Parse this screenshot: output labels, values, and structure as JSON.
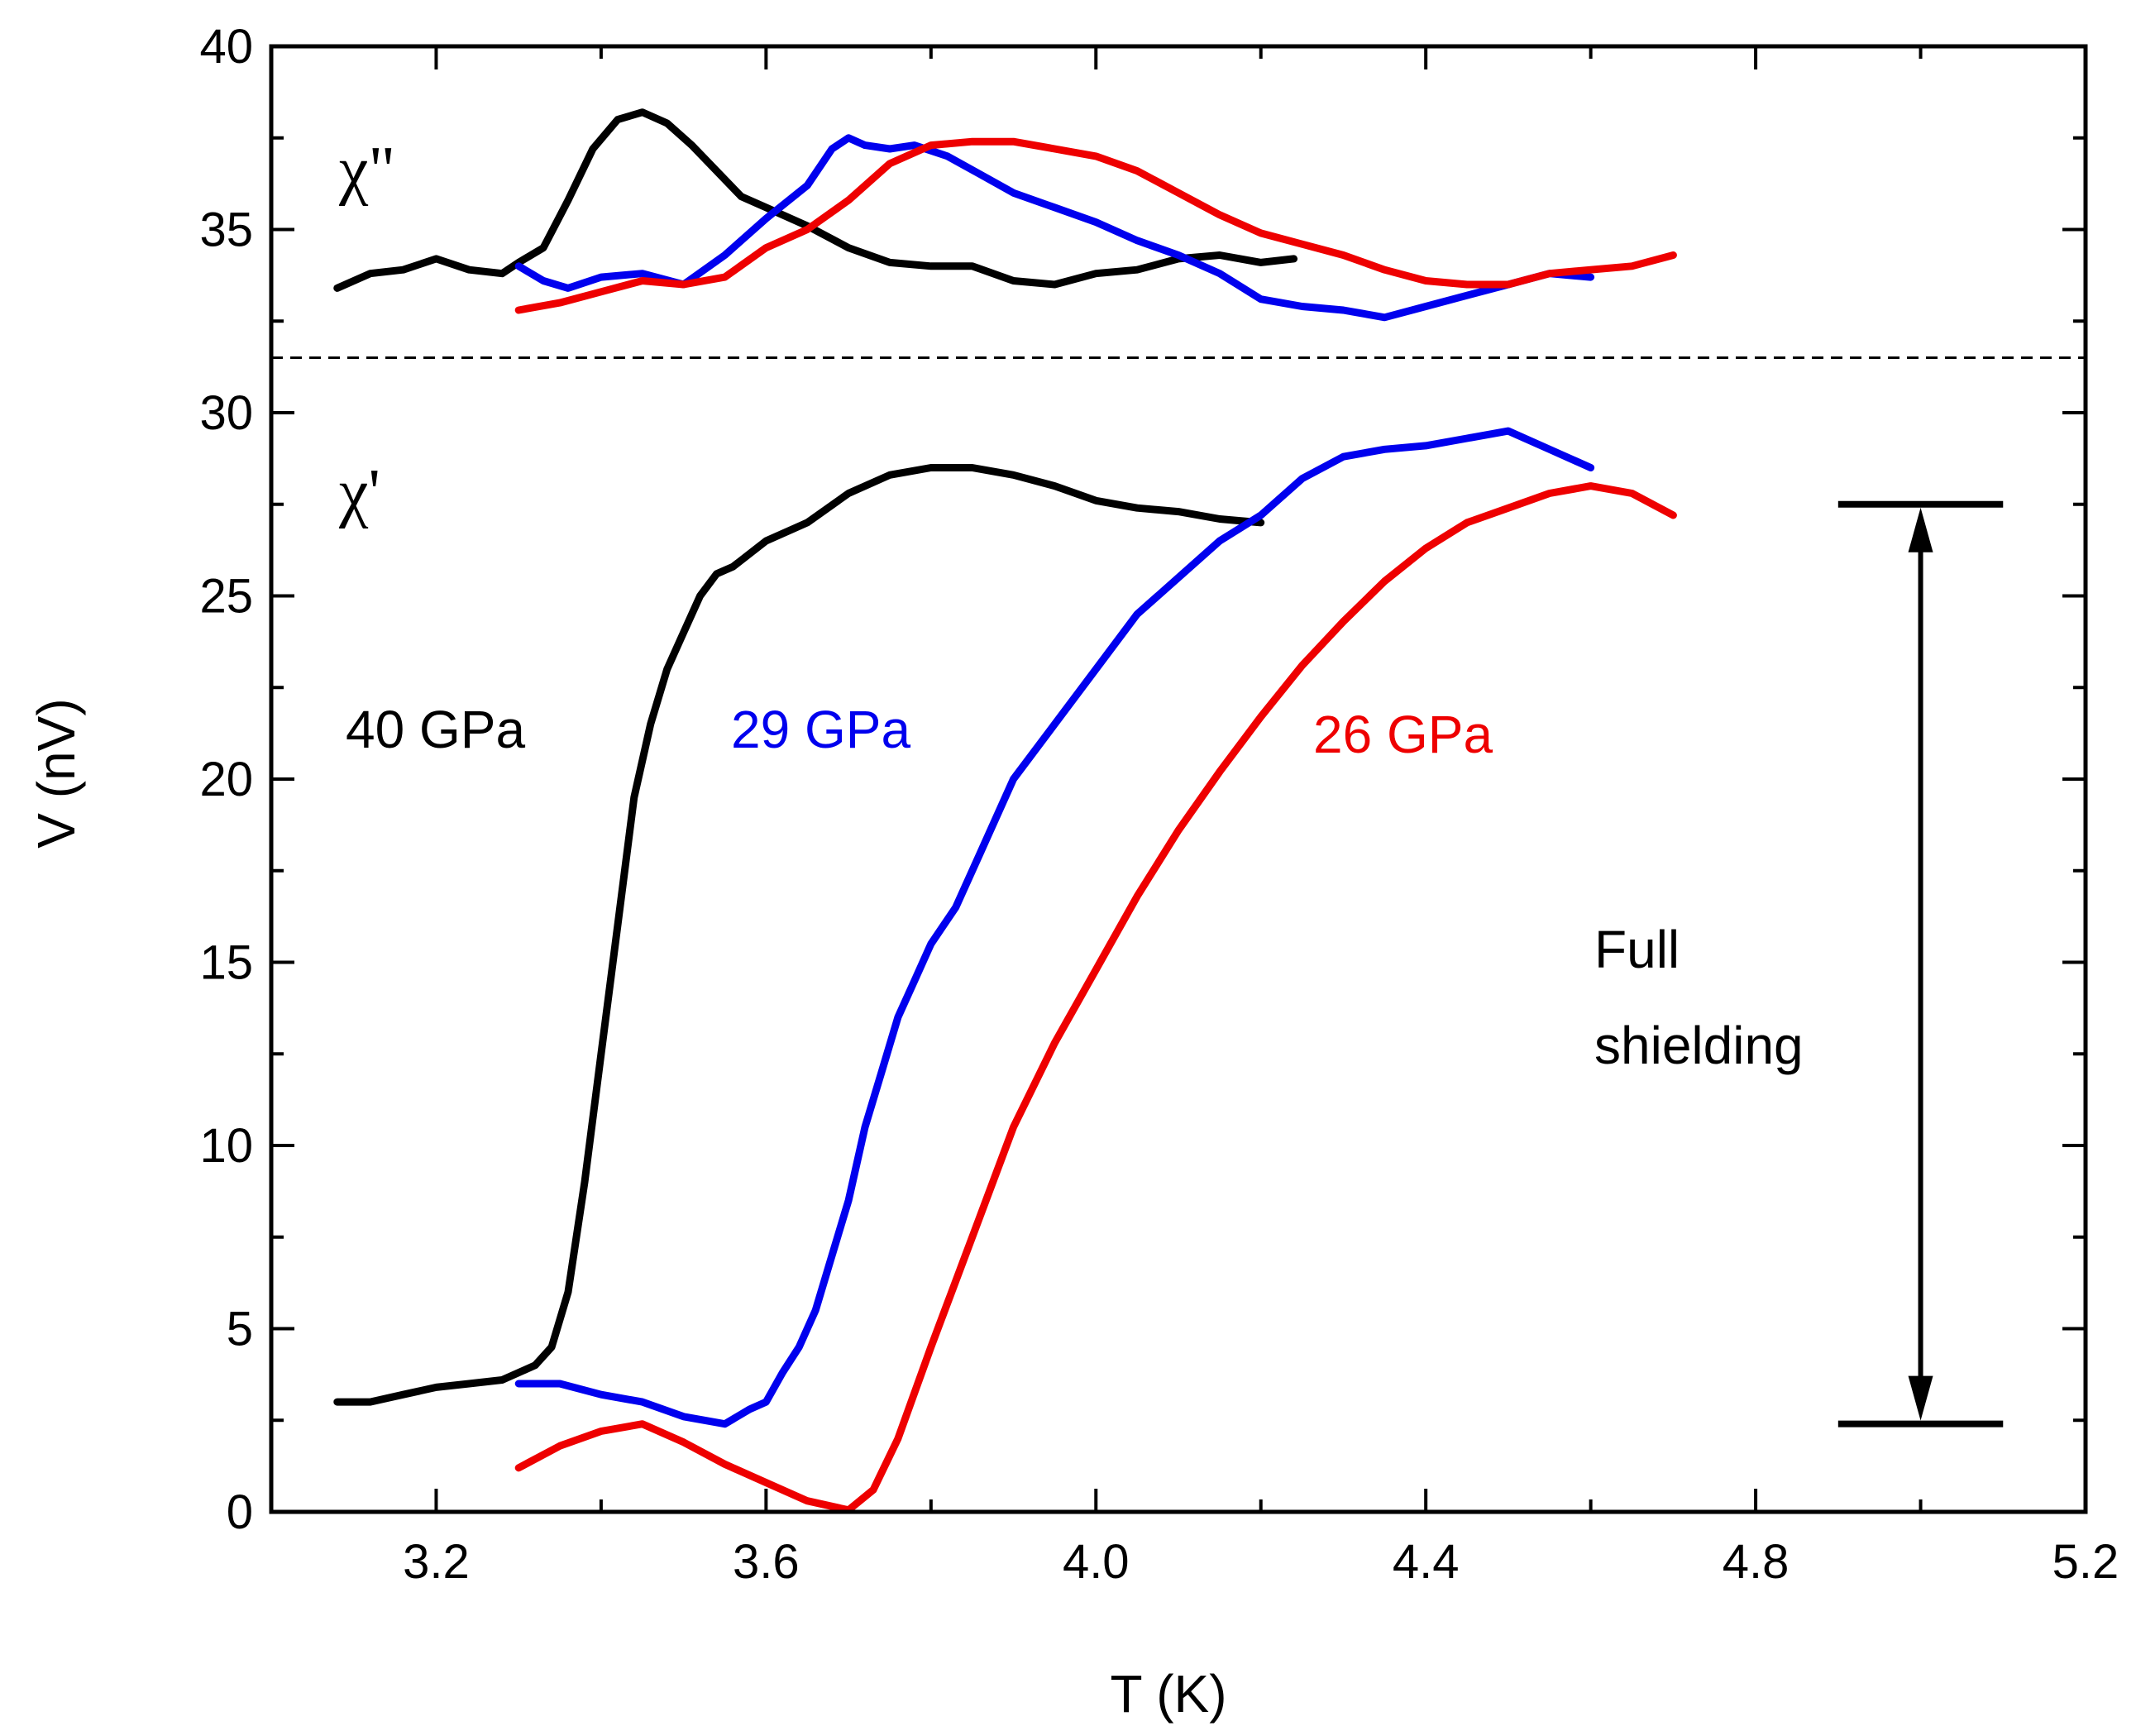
{
  "chart_data": {
    "type": "line",
    "title": "",
    "xlabel": "T (K)",
    "ylabel": "V (nV)",
    "xlim": [
      3.0,
      5.2
    ],
    "ylim": [
      0,
      40
    ],
    "x_ticks": [
      3.2,
      3.6,
      4.0,
      4.4,
      4.8,
      5.2
    ],
    "x_tick_labels": [
      "3.2",
      "3.6",
      "4.0",
      "4.4",
      "4.8",
      "5.2"
    ],
    "y_ticks": [
      0,
      5,
      10,
      15,
      20,
      25,
      30,
      35,
      40
    ],
    "y_tick_labels": [
      "0",
      "5",
      "10",
      "15",
      "20",
      "25",
      "30",
      "35",
      "40"
    ],
    "grid": false,
    "divider_y": 31.5,
    "series": [
      {
        "name": "40 GPa chi'",
        "color": "#000000",
        "x": [
          3.08,
          3.12,
          3.16,
          3.2,
          3.24,
          3.28,
          3.32,
          3.34,
          3.36,
          3.38,
          3.4,
          3.42,
          3.44,
          3.46,
          3.48,
          3.5,
          3.52,
          3.54,
          3.56,
          3.6,
          3.65,
          3.7,
          3.75,
          3.8,
          3.85,
          3.9,
          3.95,
          4.0,
          4.05,
          4.1,
          4.15,
          4.2
        ],
        "y": [
          3.0,
          3.0,
          3.2,
          3.4,
          3.5,
          3.6,
          4.0,
          4.5,
          6.0,
          9.0,
          12.5,
          16.0,
          19.5,
          21.5,
          23.0,
          24.0,
          25.0,
          25.6,
          25.8,
          26.5,
          27.0,
          27.8,
          28.3,
          28.5,
          28.5,
          28.3,
          28.0,
          27.6,
          27.4,
          27.3,
          27.1,
          27.0
        ]
      },
      {
        "name": "29 GPa chi'",
        "color": "#0000ee",
        "x": [
          3.3,
          3.35,
          3.4,
          3.45,
          3.5,
          3.55,
          3.58,
          3.6,
          3.62,
          3.64,
          3.66,
          3.68,
          3.7,
          3.72,
          3.74,
          3.76,
          3.78,
          3.8,
          3.83,
          3.86,
          3.9,
          3.95,
          4.0,
          4.05,
          4.1,
          4.15,
          4.2,
          4.25,
          4.3,
          4.35,
          4.4,
          4.45,
          4.5,
          4.55,
          4.6
        ],
        "y": [
          3.5,
          3.5,
          3.2,
          3.0,
          2.6,
          2.4,
          2.8,
          3.0,
          3.8,
          4.5,
          5.5,
          7.0,
          8.5,
          10.5,
          12.0,
          13.5,
          14.5,
          15.5,
          16.5,
          18.0,
          20.0,
          21.5,
          23.0,
          24.5,
          25.5,
          26.5,
          27.2,
          28.2,
          28.8,
          29.0,
          29.1,
          29.3,
          29.5,
          29.0,
          28.5
        ]
      },
      {
        "name": "26 GPa chi'",
        "color": "#ee0000",
        "x": [
          3.3,
          3.35,
          3.4,
          3.45,
          3.5,
          3.55,
          3.6,
          3.65,
          3.7,
          3.73,
          3.76,
          3.8,
          3.85,
          3.9,
          3.95,
          4.0,
          4.05,
          4.1,
          4.15,
          4.2,
          4.25,
          4.3,
          4.35,
          4.4,
          4.45,
          4.5,
          4.55,
          4.6,
          4.65,
          4.7
        ],
        "y": [
          1.2,
          1.8,
          2.2,
          2.4,
          1.9,
          1.3,
          0.8,
          0.3,
          0.05,
          0.6,
          2.0,
          4.5,
          7.5,
          10.5,
          12.8,
          14.8,
          16.8,
          18.6,
          20.2,
          21.7,
          23.1,
          24.3,
          25.4,
          26.3,
          27.0,
          27.4,
          27.8,
          28.0,
          27.8,
          27.2
        ]
      },
      {
        "name": "40 GPa chi''",
        "color": "#000000",
        "x": [
          3.08,
          3.12,
          3.16,
          3.2,
          3.24,
          3.28,
          3.3,
          3.33,
          3.36,
          3.39,
          3.42,
          3.45,
          3.48,
          3.51,
          3.54,
          3.57,
          3.6,
          3.65,
          3.7,
          3.75,
          3.8,
          3.85,
          3.9,
          3.95,
          4.0,
          4.05,
          4.1,
          4.15,
          4.2,
          4.24
        ],
        "y": [
          33.4,
          33.8,
          33.9,
          34.2,
          33.9,
          33.8,
          34.1,
          34.5,
          35.8,
          37.2,
          38.0,
          38.2,
          37.9,
          37.3,
          36.6,
          35.9,
          35.6,
          35.1,
          34.5,
          34.1,
          34.0,
          34.0,
          33.6,
          33.5,
          33.8,
          33.9,
          34.2,
          34.3,
          34.1,
          34.2
        ]
      },
      {
        "name": "29 GPa chi''",
        "color": "#0000ee",
        "x": [
          3.3,
          3.33,
          3.36,
          3.4,
          3.45,
          3.5,
          3.55,
          3.6,
          3.65,
          3.68,
          3.7,
          3.72,
          3.75,
          3.78,
          3.82,
          3.86,
          3.9,
          3.95,
          4.0,
          4.05,
          4.1,
          4.15,
          4.2,
          4.25,
          4.3,
          4.35,
          4.4,
          4.45,
          4.5,
          4.55,
          4.6
        ],
        "y": [
          34.0,
          33.6,
          33.4,
          33.7,
          33.8,
          33.5,
          34.3,
          35.3,
          36.2,
          37.2,
          37.5,
          37.3,
          37.2,
          37.3,
          37.0,
          36.5,
          36.0,
          35.6,
          35.2,
          34.7,
          34.3,
          33.8,
          33.1,
          32.9,
          32.8,
          32.6,
          32.9,
          33.2,
          33.5,
          33.8,
          33.7
        ]
      },
      {
        "name": "26 GPa chi''",
        "color": "#ee0000",
        "x": [
          3.3,
          3.35,
          3.4,
          3.45,
          3.5,
          3.55,
          3.6,
          3.65,
          3.7,
          3.75,
          3.8,
          3.85,
          3.9,
          3.95,
          4.0,
          4.05,
          4.1,
          4.15,
          4.2,
          4.25,
          4.3,
          4.35,
          4.4,
          4.45,
          4.5,
          4.55,
          4.6,
          4.65,
          4.7
        ],
        "y": [
          32.8,
          33.0,
          33.3,
          33.6,
          33.5,
          33.7,
          34.5,
          35.0,
          35.8,
          36.8,
          37.3,
          37.4,
          37.4,
          37.2,
          37.0,
          36.6,
          36.0,
          35.4,
          34.9,
          34.6,
          34.3,
          33.9,
          33.6,
          33.5,
          33.5,
          33.8,
          33.9,
          34.0,
          34.3
        ]
      }
    ],
    "annotations": {
      "chi_double_prime": "χ\"",
      "chi_prime": "χ'",
      "label_40": "40 GPa",
      "label_29": "29 GPa",
      "label_26": "26 GPa",
      "full_line1": "Full",
      "full_line2": "shielding",
      "shielding_range": {
        "x": 5.0,
        "y_top": 27.5,
        "y_bottom": 2.4,
        "x_half_width": 0.1
      }
    }
  }
}
